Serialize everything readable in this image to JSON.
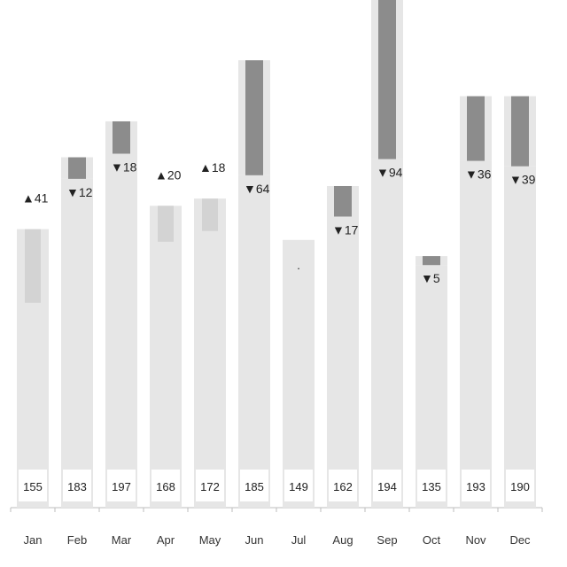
{
  "chart_data": {
    "type": "bar",
    "categories": [
      "Jan",
      "Feb",
      "Mar",
      "Apr",
      "May",
      "Jun",
      "Jul",
      "Aug",
      "Sep",
      "Oct",
      "Nov",
      "Dec"
    ],
    "series": [
      {
        "values": [
          155,
          183,
          197,
          168,
          172,
          185,
          149,
          162,
          194,
          135,
          193,
          190
        ]
      }
    ],
    "changes": [
      41,
      -12,
      -18,
      20,
      18,
      -64,
      0,
      -17,
      -94,
      -5,
      -36,
      -39
    ],
    "change_labels": [
      "41",
      "12",
      "18",
      "20",
      "18",
      "64",
      "",
      "17",
      "94",
      "5",
      "36",
      "39"
    ],
    "ylim": [
      0,
      250
    ],
    "grid": false,
    "colors": {
      "base": "#e6e6e6",
      "increase": "#d3d3d3",
      "decrease": "#8c8c8c",
      "axis": "#bdbdbd",
      "value_box": "#ffffff"
    }
  }
}
